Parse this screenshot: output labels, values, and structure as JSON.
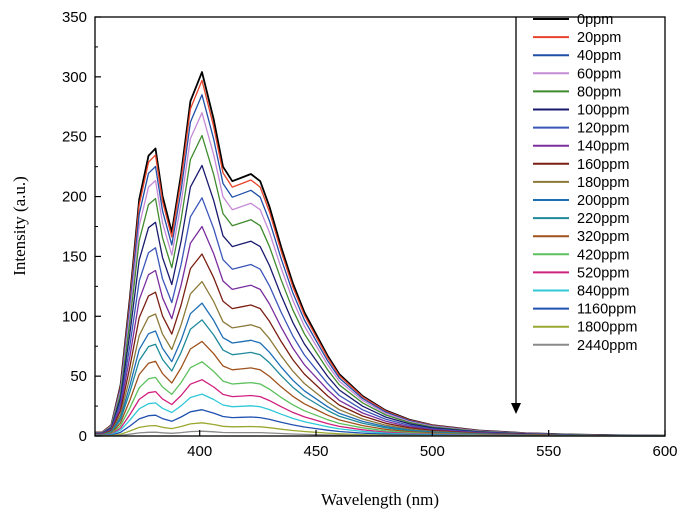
{
  "chart_data": {
    "type": "line",
    "title": "",
    "xlabel": "Wavelength (nm)",
    "ylabel": "Intensity (a.u.)",
    "xlim": [
      355,
      600
    ],
    "ylim": [
      0,
      350
    ],
    "x_ticks": [
      400,
      450,
      500,
      550,
      600
    ],
    "y_ticks": [
      0,
      50,
      100,
      150,
      200,
      250,
      300,
      350
    ],
    "legend_position": "top-right",
    "arrow_annotation": "downward arrow indicating intensity decreasing with concentration",
    "peak_template_x": [
      355,
      358,
      362,
      366,
      370,
      374,
      378,
      381,
      384,
      388,
      392,
      396,
      401,
      406,
      410,
      414,
      418,
      422,
      426,
      430,
      435,
      440,
      445,
      450,
      455,
      460,
      470,
      480,
      490,
      500,
      520,
      540,
      560,
      580,
      600
    ],
    "peak_template_rel": [
      0.01,
      0.01,
      0.03,
      0.14,
      0.38,
      0.65,
      0.77,
      0.79,
      0.66,
      0.56,
      0.72,
      0.92,
      1.0,
      0.87,
      0.74,
      0.7,
      0.71,
      0.72,
      0.7,
      0.63,
      0.52,
      0.42,
      0.34,
      0.28,
      0.22,
      0.17,
      0.11,
      0.07,
      0.045,
      0.03,
      0.015,
      0.008,
      0.004,
      0.002,
      0.001
    ],
    "series": [
      {
        "name": "0ppm",
        "color": "#000000",
        "peak": 304
      },
      {
        "name": "20ppm",
        "color": "#e8432a",
        "peak": 297
      },
      {
        "name": "40ppm",
        "color": "#1f4fa8",
        "peak": 285
      },
      {
        "name": "60ppm",
        "color": "#c58ad6",
        "peak": 270
      },
      {
        "name": "80ppm",
        "color": "#3f8a2e",
        "peak": 251
      },
      {
        "name": "100ppm",
        "color": "#1a1a6e",
        "peak": 226
      },
      {
        "name": "120ppm",
        "color": "#3a55b8",
        "peak": 199
      },
      {
        "name": "140ppm",
        "color": "#7a2f9e",
        "peak": 175
      },
      {
        "name": "160ppm",
        "color": "#7a1f12",
        "peak": 152
      },
      {
        "name": "180ppm",
        "color": "#8c7a3a",
        "peak": 129
      },
      {
        "name": "200ppm",
        "color": "#1f6fb5",
        "peak": 111
      },
      {
        "name": "220ppm",
        "color": "#1e8a9a",
        "peak": 97
      },
      {
        "name": "320ppm",
        "color": "#a0521d",
        "peak": 79
      },
      {
        "name": "420ppm",
        "color": "#5cc05c",
        "peak": 62
      },
      {
        "name": "520ppm",
        "color": "#d0207f",
        "peak": 47
      },
      {
        "name": "840ppm",
        "color": "#30c8d8",
        "peak": 35
      },
      {
        "name": "1160ppm",
        "color": "#2050b0",
        "peak": 22
      },
      {
        "name": "1800ppm",
        "color": "#9aa830",
        "peak": 11
      },
      {
        "name": "2440ppm",
        "color": "#8a8a8a",
        "peak": 4
      }
    ]
  }
}
